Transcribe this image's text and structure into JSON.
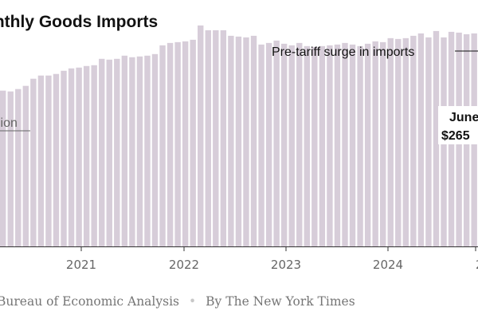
{
  "header": {
    "title": "onthly Goods Imports"
  },
  "footer": {
    "source_text": "Bureau of Economic Analysis",
    "credit_text": "By The New York Times"
  },
  "chart_data": {
    "type": "bar",
    "title": "onthly Goods Imports",
    "bar_color": "#d7cdd9",
    "ylim": [
      0,
      300
    ],
    "y_label_fragment": "lion",
    "x_tick_labels": [
      "2021",
      "2022",
      "2023",
      "2024",
      "2"
    ],
    "annotation_surge": "Pre-tariff surge in imports",
    "annotation_june_line1": "June",
    "annotation_june_line2": "$265",
    "values": [
      196,
      195,
      198,
      202,
      211,
      215,
      215,
      217,
      221,
      224,
      225,
      227,
      228,
      236,
      235,
      236,
      240,
      238,
      239,
      240,
      242,
      253,
      256,
      257,
      258,
      260,
      278,
      272,
      272,
      272,
      265,
      264,
      263,
      265,
      254,
      256,
      259,
      255,
      253,
      256,
      252,
      251,
      252,
      253,
      254,
      256,
      254,
      252,
      255,
      258,
      257,
      262,
      261,
      262,
      265,
      268,
      263,
      271,
      263,
      270,
      269,
      267,
      268
    ]
  }
}
